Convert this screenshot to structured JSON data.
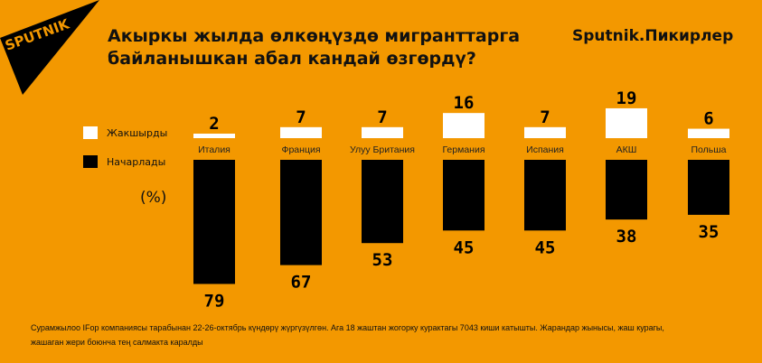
{
  "logo": "SPUTNIK",
  "title_line1": "Акыркы жылда өлкөңүздө мигранттарга",
  "title_line2": "байланышкан абал кандай өзгөрдү?",
  "brand": "Sputnik.Пикирлер",
  "unit": "(%)",
  "footnote": "Сурамжылоо IFop компаниясы тарабынан 22-26-октябрь күндөрү жүргүзүлгөн. Ага 18 жаштан жогорку курактагы 7043 киши катышты. Жарандар жынысы, жаш курагы, жашаган жери боюнча тең салмакта каралды",
  "chart_data": {
    "type": "bar",
    "categories": [
      "Италия",
      "Франция",
      "Улуу Британия",
      "Германия",
      "Испания",
      "АКШ",
      "Польша"
    ],
    "series": [
      {
        "name": "Жакшырды",
        "color": "#ffffff",
        "values": [
          2,
          7,
          7,
          16,
          7,
          19,
          6
        ]
      },
      {
        "name": "Начарлады",
        "color": "#000000",
        "values": [
          79,
          67,
          53,
          45,
          45,
          38,
          35
        ]
      }
    ],
    "ylabel": "(%)"
  }
}
